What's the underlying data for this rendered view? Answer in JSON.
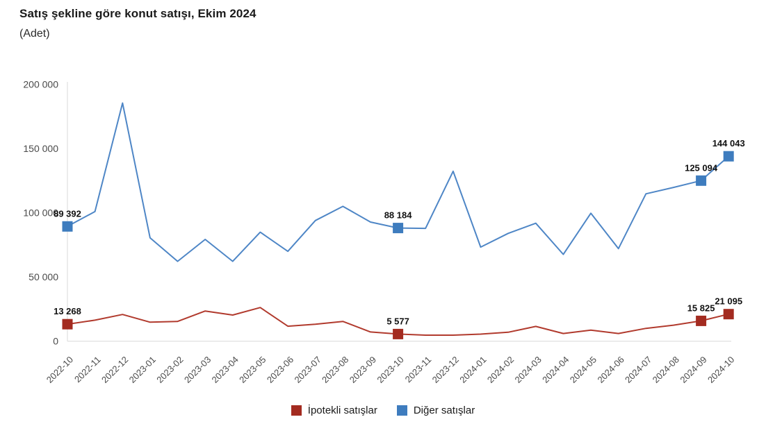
{
  "header": {
    "title": "Satış şekline göre konut satışı, Ekim 2024",
    "subtitle": "(Adet)"
  },
  "colors": {
    "mortgage_line": "#b13a2d",
    "mortgage_marker": "#a32b20",
    "other_line": "#4e86c6",
    "other_marker": "#3e7cbe",
    "axis": "#d8d8d8",
    "tick_text": "#4a4a4a",
    "label_text": "#111111"
  },
  "chart_data": {
    "type": "line",
    "title": "Satış şekline göre konut satışı, Ekim 2024",
    "subtitle": "(Adet)",
    "xlabel": "",
    "ylabel": "Adet",
    "ylim": [
      0,
      200000
    ],
    "grid": false,
    "legend_position": "bottom",
    "yticks": [
      {
        "value": 0,
        "label": "0"
      },
      {
        "value": 50000,
        "label": "50 000"
      },
      {
        "value": 100000,
        "label": "100 000"
      },
      {
        "value": 150000,
        "label": "150 000"
      },
      {
        "value": 200000,
        "label": "200 000"
      }
    ],
    "categories": [
      "2022-10",
      "2022-11",
      "2022-12",
      "2023-01",
      "2023-02",
      "2023-03",
      "2023-04",
      "2023-05",
      "2023-06",
      "2023-07",
      "2023-08",
      "2023-09",
      "2023-10",
      "2023-11",
      "2023-12",
      "2024-01",
      "2024-02",
      "2024-03",
      "2024-04",
      "2024-05",
      "2024-06",
      "2024-07",
      "2024-08",
      "2024-09",
      "2024-10"
    ],
    "series": [
      {
        "name": "Diğer satışlar",
        "line_color": "#4e86c6",
        "marker_color": "#3e7cbe",
        "values": [
          89392,
          101000,
          185500,
          80500,
          62200,
          79300,
          62200,
          84900,
          70000,
          94000,
          105000,
          92800,
          88184,
          87900,
          132400,
          73300,
          84000,
          91900,
          67600,
          99700,
          72100,
          114800,
          119800,
          125094,
          144043
        ],
        "point_labels": {
          "2022-10": "89 392",
          "2023-10": "88 184",
          "2024-09": "125 094",
          "2024-10": "144 043"
        }
      },
      {
        "name": "İpotekli satışlar",
        "line_color": "#b13a2d",
        "marker_color": "#a32b20",
        "values": [
          13268,
          16400,
          20800,
          14800,
          15400,
          23500,
          20400,
          26200,
          11700,
          13200,
          15400,
          7200,
          5577,
          4700,
          4700,
          5500,
          7000,
          11500,
          6000,
          8600,
          6000,
          10000,
          12500,
          15825,
          21095
        ],
        "point_labels": {
          "2022-10": "13 268",
          "2023-10": "5 577",
          "2024-09": "15 825",
          "2024-10": "21 095"
        }
      }
    ]
  },
  "legend": {
    "items": [
      {
        "label": "İpotekli satışlar",
        "color": "#a32b20"
      },
      {
        "label": "Diğer satışlar",
        "color": "#3e7cbe"
      }
    ]
  }
}
